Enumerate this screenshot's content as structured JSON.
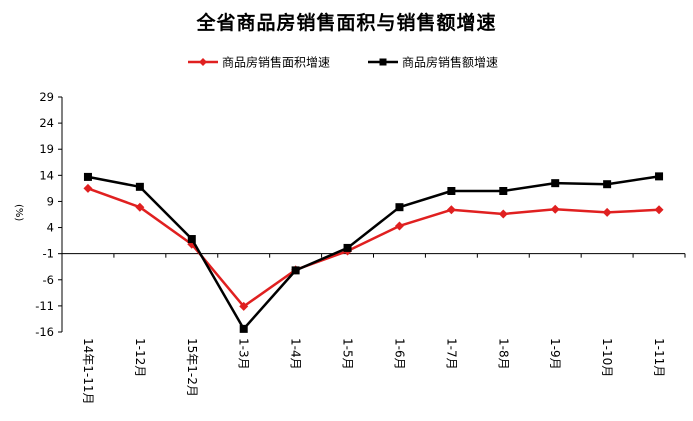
{
  "chart_data": {
    "type": "line",
    "title": "全省商品房销售面积与销售额增速",
    "ylabel": "(%)",
    "xlabel": "",
    "ylim": [
      -16,
      29
    ],
    "yticks": [
      29,
      24,
      19,
      14,
      9,
      4,
      -1,
      -6,
      -11,
      -16
    ],
    "categories": [
      "14年1-11月",
      "1-12月",
      "15年1-2月",
      "1-3月",
      "1-4月",
      "1-5月",
      "1-6月",
      "1-7月",
      "1-8月",
      "1-9月",
      "1-10月",
      "1-11月"
    ],
    "series": [
      {
        "name": "商品房销售面积增速",
        "color": "#e02020",
        "marker": "diamond",
        "values": [
          11.5,
          7.9,
          0.8,
          -11.1,
          -4.1,
          -0.5,
          4.3,
          7.4,
          6.6,
          7.5,
          6.9,
          7.4
        ]
      },
      {
        "name": "商品房销售额增速",
        "color": "#000000",
        "marker": "square",
        "values": [
          13.7,
          11.8,
          1.8,
          -15.4,
          -4.2,
          0.1,
          7.9,
          11.0,
          11.0,
          12.5,
          12.3,
          13.8
        ]
      }
    ],
    "legend": "top-center",
    "grid": false
  }
}
